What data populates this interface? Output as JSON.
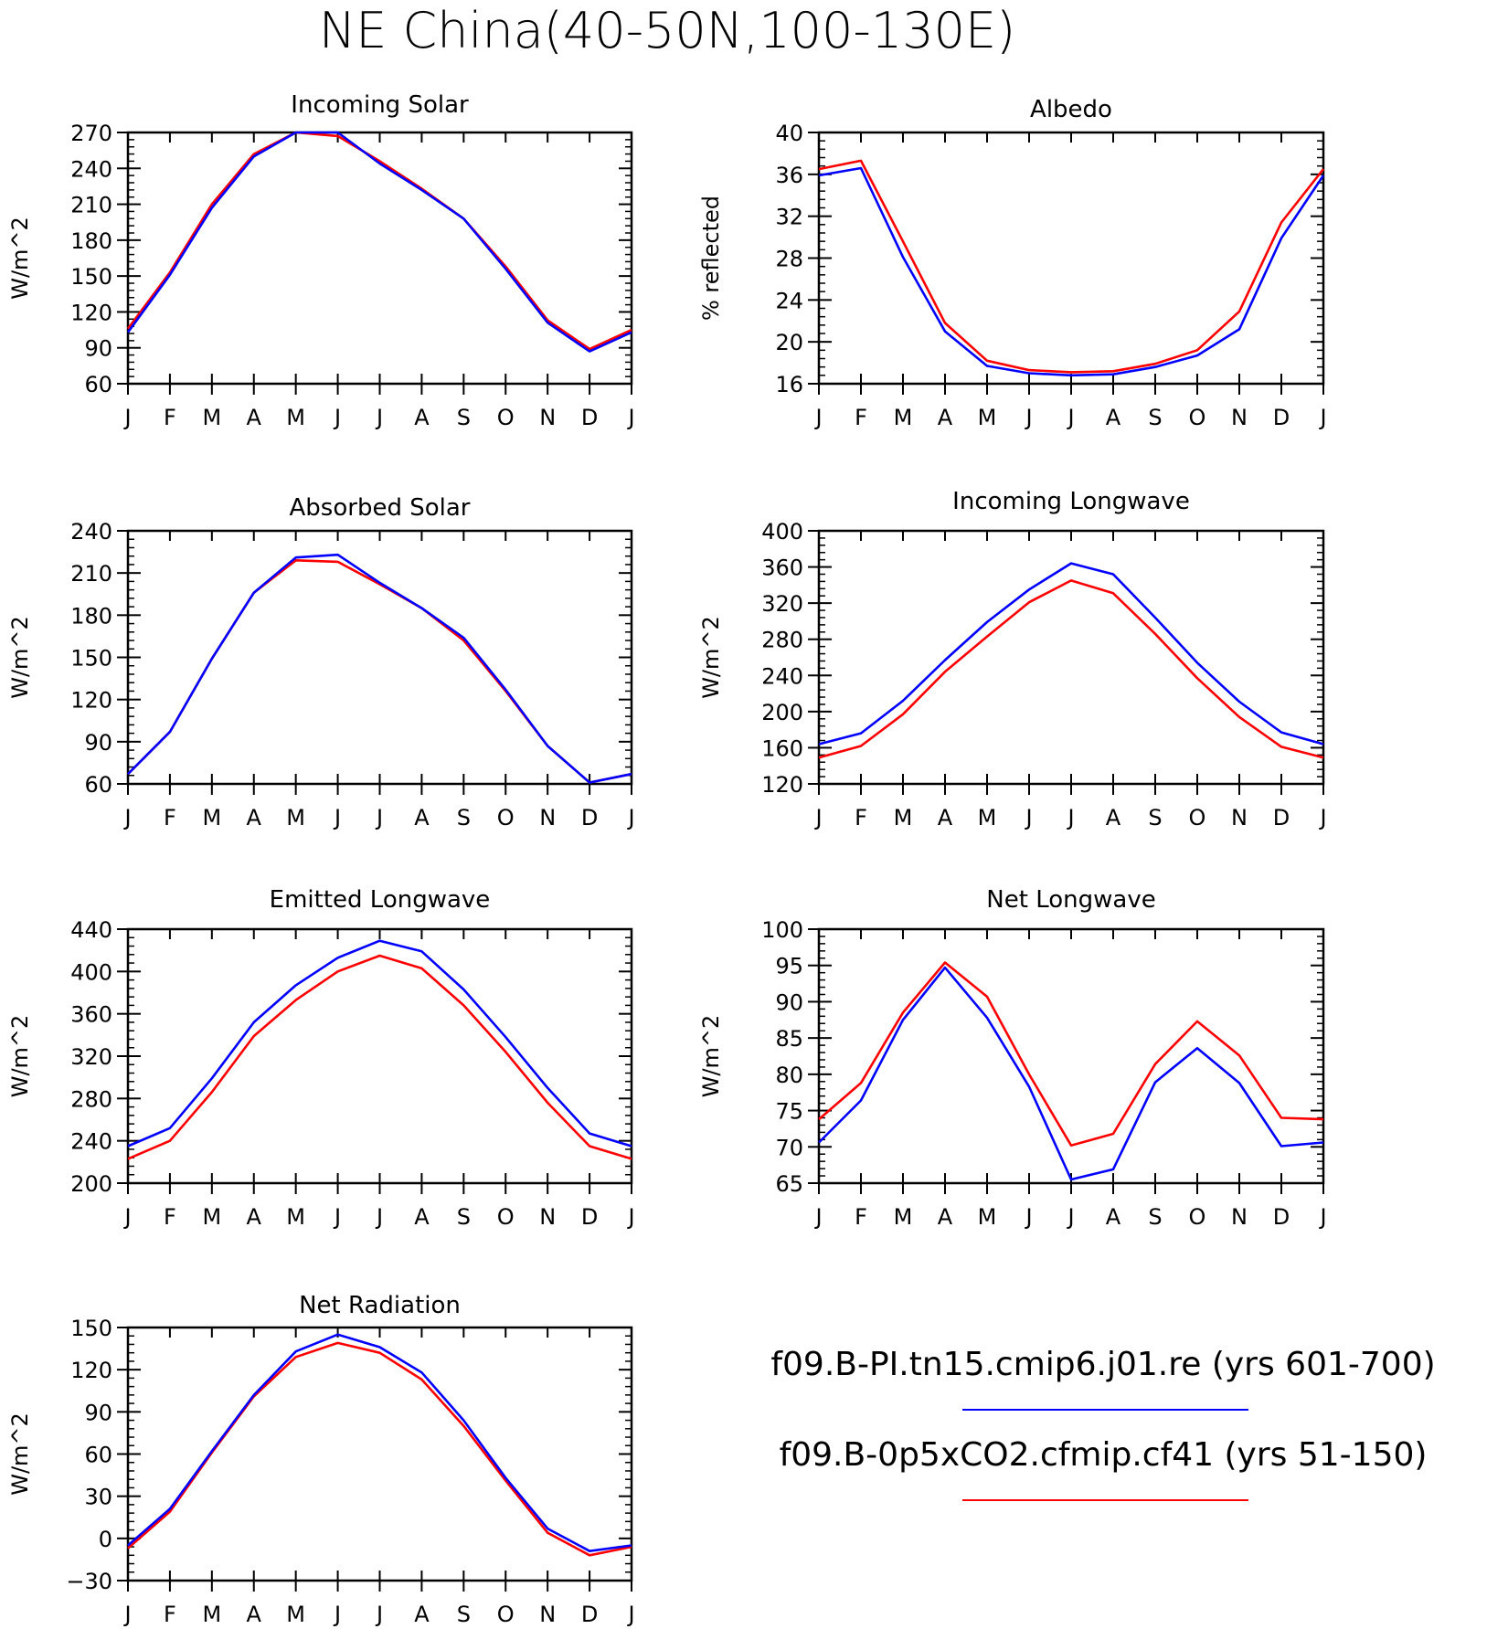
{
  "title": "NE China(40-50N,100-130E)",
  "months": [
    "J",
    "F",
    "M",
    "A",
    "M",
    "J",
    "J",
    "A",
    "S",
    "O",
    "N",
    "D",
    "J"
  ],
  "colors": {
    "ctrl": "#0000ff",
    "exp": "#ff0000"
  },
  "legend": {
    "entries": [
      {
        "label": "f09.B-PI.tn15.cmip6.j01.re (yrs 601-700)",
        "color": "#0000ff"
      },
      {
        "label": "f09.B-0p5xCO2.cfmip.cf41 (yrs 51-150)",
        "color": "#ff0000"
      }
    ]
  },
  "chart_data": [
    {
      "type": "line",
      "title": "Incoming Solar",
      "ylabel": "W/m^2",
      "ylim": [
        60,
        270
      ],
      "yticks": [
        60,
        90,
        120,
        150,
        180,
        210,
        240,
        270
      ],
      "series": [
        {
          "color": "#ff0000",
          "values": [
            106,
            153,
            210,
            252,
            270,
            267,
            246,
            223,
            198,
            158,
            113,
            89,
            105
          ]
        },
        {
          "color": "#0000ff",
          "values": [
            103,
            151,
            207,
            250,
            270,
            270,
            244,
            222,
            198,
            156,
            111,
            87,
            103
          ]
        }
      ]
    },
    {
      "type": "line",
      "title": "Albedo",
      "ylabel": "% reflected",
      "ylim": [
        16,
        40
      ],
      "yticks": [
        16,
        20,
        24,
        28,
        32,
        36,
        40
      ],
      "series": [
        {
          "color": "#ff0000",
          "values": [
            36.5,
            37.3,
            29.6,
            21.8,
            18.2,
            17.3,
            17.1,
            17.2,
            17.9,
            19.2,
            22.9,
            31.4,
            36.5
          ]
        },
        {
          "color": "#0000ff",
          "values": [
            35.9,
            36.6,
            28.1,
            21.0,
            17.7,
            17.0,
            16.8,
            16.9,
            17.6,
            18.7,
            21.2,
            29.9,
            35.9
          ]
        }
      ]
    },
    {
      "type": "line",
      "title": "Absorbed Solar",
      "ylabel": "W/m^2",
      "ylim": [
        60,
        240
      ],
      "yticks": [
        60,
        90,
        120,
        150,
        180,
        210,
        240
      ],
      "series": [
        {
          "color": "#ff0000",
          "values": [
            67,
            97,
            149,
            196,
            219,
            218,
            202,
            185,
            162,
            126,
            87,
            61,
            67
          ]
        },
        {
          "color": "#0000ff",
          "values": [
            67,
            97,
            149,
            196,
            221,
            223,
            203,
            185,
            164,
            127,
            87,
            61,
            67
          ]
        }
      ]
    },
    {
      "type": "line",
      "title": "Incoming Longwave",
      "ylabel": "W/m^2",
      "ylim": [
        120,
        400
      ],
      "yticks": [
        120,
        160,
        200,
        240,
        280,
        320,
        360,
        400
      ],
      "series": [
        {
          "color": "#ff0000",
          "values": [
            149,
            162,
            197,
            244,
            283,
            321,
            345,
            331,
            286,
            237,
            194,
            161,
            149
          ]
        },
        {
          "color": "#0000ff",
          "values": [
            164,
            176,
            212,
            257,
            299,
            335,
            364,
            352,
            304,
            254,
            211,
            177,
            164
          ]
        }
      ]
    },
    {
      "type": "line",
      "title": "Emitted Longwave",
      "ylabel": "W/m^2",
      "ylim": [
        200,
        440
      ],
      "yticks": [
        200,
        240,
        280,
        320,
        360,
        400,
        440
      ],
      "series": [
        {
          "color": "#ff0000",
          "values": [
            223,
            240,
            286,
            339,
            373,
            400,
            415,
            403,
            368,
            324,
            276,
            235,
            223
          ]
        },
        {
          "color": "#0000ff",
          "values": [
            235,
            252,
            299,
            352,
            387,
            413,
            429,
            419,
            383,
            338,
            290,
            247,
            235
          ]
        }
      ]
    },
    {
      "type": "line",
      "title": "Net Longwave",
      "ylabel": "W/m^2",
      "ylim": [
        65,
        100
      ],
      "yticks": [
        65,
        70,
        75,
        80,
        85,
        90,
        95,
        100
      ],
      "series": [
        {
          "color": "#ff0000",
          "values": [
            73.8,
            78.8,
            88.5,
            95.4,
            90.7,
            80.0,
            70.2,
            71.8,
            81.4,
            87.3,
            82.6,
            74.0,
            73.8
          ]
        },
        {
          "color": "#0000ff",
          "values": [
            70.6,
            76.4,
            87.5,
            94.7,
            87.8,
            78.3,
            65.5,
            66.9,
            78.9,
            83.6,
            78.8,
            70.1,
            70.6
          ]
        }
      ]
    },
    {
      "type": "line",
      "title": "Net Radiation",
      "ylabel": "W/m^2",
      "ylim": [
        -30,
        150
      ],
      "yticks": [
        -30,
        0,
        30,
        60,
        90,
        120,
        150
      ],
      "series": [
        {
          "color": "#ff0000",
          "values": [
            -7,
            19,
            61,
            101,
            129,
            139,
            132,
            113,
            80,
            41,
            4,
            -12,
            -6
          ]
        },
        {
          "color": "#0000ff",
          "values": [
            -5,
            21,
            62,
            102,
            133,
            145,
            136,
            118,
            84,
            43,
            7,
            -9,
            -5
          ]
        }
      ]
    }
  ]
}
